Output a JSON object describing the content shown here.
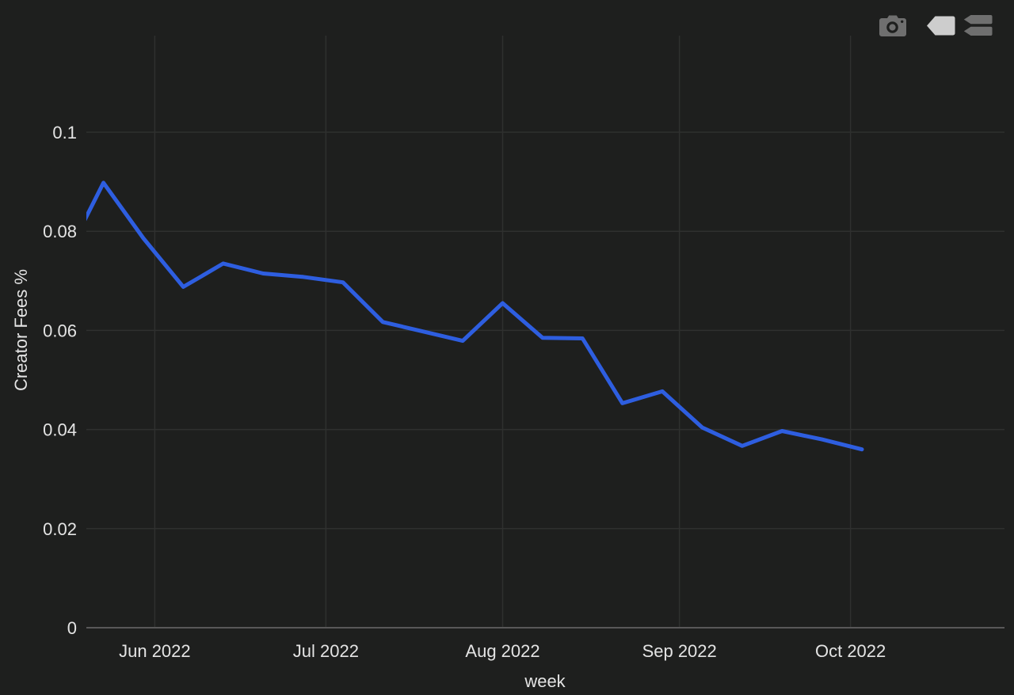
{
  "colors": {
    "background": "#1e1f1e",
    "line": "#2e5ee0",
    "grid": "#2f302f",
    "axis_line": "#585858",
    "text": "#e4e4e4",
    "modebar_icon": "#6f6f6f",
    "modebar_icon_active": "#cdcdcd"
  },
  "modebar": {
    "buttons": [
      {
        "icon": "camera-icon",
        "active": false
      },
      {
        "icon": "tag-icon",
        "active": true
      },
      {
        "icon": "double-tag-icon",
        "active": false
      }
    ]
  },
  "chart_data": {
    "type": "line",
    "title": "",
    "xlabel": "week",
    "ylabel": "Creator Fees %",
    "line_color": "#2e5ee0",
    "grid": true,
    "legend": "none",
    "x": [
      "2022-05-16",
      "2022-05-23",
      "2022-05-30",
      "2022-06-06",
      "2022-06-13",
      "2022-06-20",
      "2022-06-27",
      "2022-07-04",
      "2022-07-11",
      "2022-07-18",
      "2022-07-25",
      "2022-08-01",
      "2022-08-08",
      "2022-08-15",
      "2022-08-22",
      "2022-08-29",
      "2022-09-05",
      "2022-09-12",
      "2022-09-19",
      "2022-09-26",
      "2022-10-03"
    ],
    "y": [
      0.0738,
      0.0898,
      0.0786,
      0.0688,
      0.0735,
      0.0715,
      0.0708,
      0.0697,
      0.0617,
      0.0598,
      0.0579,
      0.0655,
      0.0585,
      0.0584,
      0.0453,
      0.0477,
      0.0404,
      0.0367,
      0.0397,
      0.038,
      0.036
    ],
    "xtick_dates": [
      "2022-06-01",
      "2022-07-01",
      "2022-08-01",
      "2022-09-01",
      "2022-10-01"
    ],
    "xtick_labels": [
      "Jun 2022",
      "Jul 2022",
      "Aug 2022",
      "Sep 2022",
      "Oct 2022"
    ],
    "yticks": [
      0,
      0.02,
      0.04,
      0.06,
      0.08,
      0.1
    ],
    "ytick_labels": [
      "0",
      "0.02",
      "0.04",
      "0.06",
      "0.08",
      "0.1"
    ],
    "xlim": [
      "2022-05-20",
      "2022-10-28"
    ],
    "ylim": [
      0,
      0.1195
    ]
  }
}
